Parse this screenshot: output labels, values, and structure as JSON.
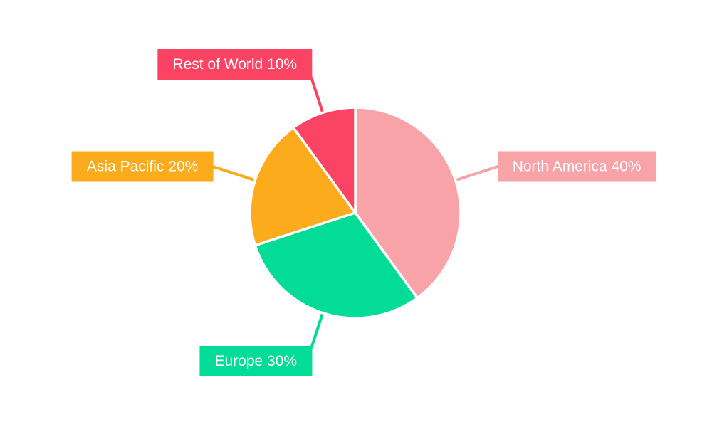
{
  "chart_data": {
    "type": "pie",
    "categories": [
      "North America",
      "Europe",
      "Asia Pacific",
      "Rest of World"
    ],
    "values": [
      40,
      30,
      20,
      10
    ],
    "unit": "%",
    "labels": [
      "North America 40%",
      "Europe 30%",
      "Asia Pacific 20%",
      "Rest of World 10%"
    ],
    "colors": [
      "#F8A3A7",
      "#03DC96",
      "#FBAB1B",
      "#FB4363"
    ],
    "start_angle": "top",
    "direction": "clockwise",
    "legend_position": "callout-labels",
    "background": "#FFFFFF",
    "label_text_color": "#FFFFFF"
  }
}
